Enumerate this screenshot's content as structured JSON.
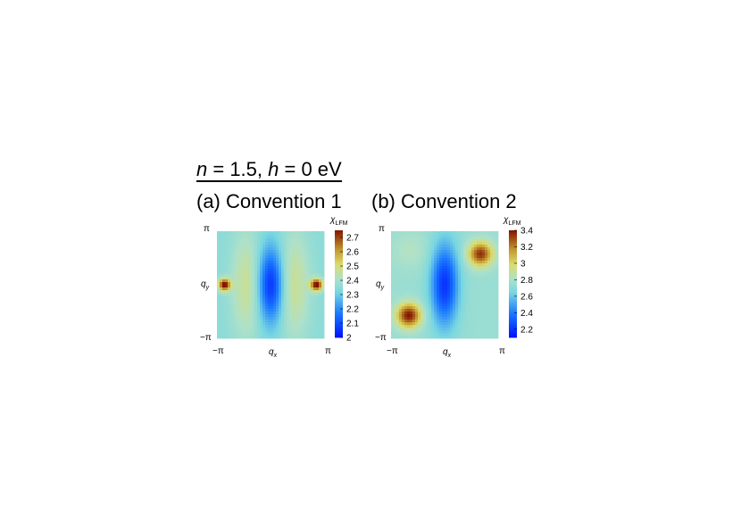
{
  "figure": {
    "title_var_n": "n",
    "title_eq_n": " = 1.5, ",
    "title_var_h": "h",
    "title_eq_h": " = 0 eV"
  },
  "chart_data": [
    {
      "type": "heatmap",
      "title": "(a) Convention 1",
      "x_var": "q",
      "x_sub": "x",
      "y_var": "q",
      "y_sub": "y",
      "xticks": [
        "−π",
        "π"
      ],
      "yticks": [
        "π",
        "−π"
      ],
      "xlim": [
        -3.14159,
        3.14159
      ],
      "ylim": [
        -3.14159,
        3.14159
      ],
      "colorbar": {
        "label_var": "χ",
        "label_sub": "LFM",
        "range": [
          2.0,
          2.75
        ],
        "ticks": [
          2,
          2.1,
          2.2,
          2.3,
          2.4,
          2.5,
          2.6,
          2.7
        ],
        "tick_labels": [
          "2",
          "2.1",
          "2.2",
          "2.3",
          "2.4",
          "2.5",
          "2.6",
          "2.7"
        ]
      },
      "model": {
        "description_free": true,
        "base": 2.35,
        "terms": [
          {
            "cx": 0.0,
            "cy": 0.0,
            "sx": 0.75,
            "sy": 2.2,
            "amp": -0.3
          },
          {
            "cx": -2.7,
            "cy": 0.0,
            "sx": 0.35,
            "sy": 0.35,
            "amp": 0.42
          },
          {
            "cx": 2.7,
            "cy": 0.0,
            "sx": 0.35,
            "sy": 0.35,
            "amp": 0.42
          },
          {
            "cx": -1.4,
            "cy": 0.0,
            "sx": 0.9,
            "sy": 3.2,
            "amp": 0.12
          },
          {
            "cx": 1.4,
            "cy": 0.0,
            "sx": 0.9,
            "sy": 3.2,
            "amp": 0.12
          }
        ]
      }
    },
    {
      "type": "heatmap",
      "title": "(b) Convention 2",
      "x_var": "q",
      "x_sub": "x",
      "y_var": "q",
      "y_sub": "y",
      "xticks": [
        "−π",
        "π"
      ],
      "yticks": [
        "π",
        "−π"
      ],
      "xlim": [
        -3.14159,
        3.14159
      ],
      "ylim": [
        -3.14159,
        3.14159
      ],
      "colorbar": {
        "label_var": "χ",
        "label_sub": "LFM",
        "range": [
          2.1,
          3.4
        ],
        "ticks": [
          2.2,
          2.4,
          2.6,
          2.8,
          3,
          3.2,
          3.4
        ],
        "tick_labels": [
          "2.2",
          "2.4",
          "2.6",
          "2.8",
          "3",
          "3.2",
          "3.4"
        ]
      },
      "model": {
        "base": 2.75,
        "terms": [
          {
            "cx": 0.0,
            "cy": 0.0,
            "sx": 0.8,
            "sy": 2.4,
            "amp": -0.55
          },
          {
            "cx": -2.1,
            "cy": -1.8,
            "sx": 0.7,
            "sy": 0.7,
            "amp": 0.65
          },
          {
            "cx": 2.1,
            "cy": 1.8,
            "sx": 0.7,
            "sy": 0.7,
            "amp": 0.6
          },
          {
            "cx": -2.0,
            "cy": 2.0,
            "sx": 1.1,
            "sy": 1.1,
            "amp": 0.08
          }
        ]
      }
    }
  ]
}
